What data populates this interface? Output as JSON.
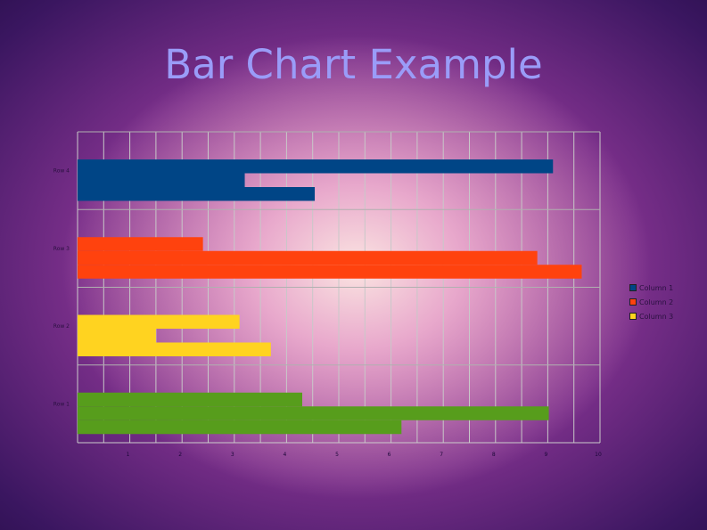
{
  "chart_data": {
    "type": "bar",
    "orientation": "horizontal",
    "title": "Bar Chart Example",
    "categories": [
      "Row 1",
      "Row 2",
      "Row 3",
      "Row 4"
    ],
    "series": [
      {
        "name": "Column 1",
        "values": [
          4.3,
          3.1,
          2.4,
          9.1
        ]
      },
      {
        "name": "Column 2",
        "values": [
          9.02,
          1.5,
          8.8,
          3.2
        ]
      },
      {
        "name": "Column 3",
        "values": [
          6.2,
          3.7,
          9.65,
          4.54
        ]
      }
    ],
    "category_colors": [
      "#579d1c",
      "#ffd320",
      "#ff420e",
      "#004586"
    ],
    "series_colors": [
      "#004586",
      "#ff420e",
      "#ffd320"
    ],
    "xlim": [
      0,
      10
    ],
    "x_ticks": [
      "1",
      "2",
      "3",
      "4",
      "5",
      "6",
      "7",
      "8",
      "9",
      "10"
    ],
    "grid": true,
    "legend": "right"
  }
}
